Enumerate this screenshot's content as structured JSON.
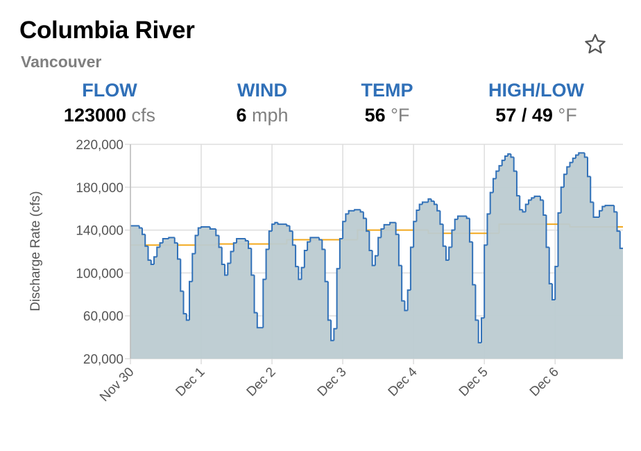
{
  "header": {
    "title": "Columbia River",
    "subtitle": "Vancouver",
    "favorite_icon": "star-outline-icon"
  },
  "stats": [
    {
      "label": "FLOW",
      "value": "123000",
      "unit": "cfs"
    },
    {
      "label": "WIND",
      "value": "6",
      "unit": "mph"
    },
    {
      "label": "TEMP",
      "value": "56",
      "unit": "°F"
    },
    {
      "label": "HIGH/LOW",
      "value": "57 / 49",
      "unit": "°F"
    }
  ],
  "colors": {
    "accent": "#3070b8",
    "flow_line": "#3070b8",
    "flow_fill": "#bccbd1",
    "secondary_line": "#f2a81d",
    "grid": "#dddddd"
  },
  "chart_data": {
    "type": "area",
    "step": true,
    "ylabel": "Discharge Rate (cfs)",
    "xlabel": "",
    "ylim": [
      20000,
      220000
    ],
    "yticks": [
      "20,000",
      "60,000",
      "100,000",
      "140,000",
      "180,000",
      "220,000"
    ],
    "ytick_values": [
      20000,
      60000,
      100000,
      140000,
      180000,
      220000
    ],
    "xticks": [
      "Nov 30",
      "Dec 1",
      "Dec 2",
      "Dec 3",
      "Dec 4",
      "Dec 5",
      "Dec 6"
    ],
    "xlim": [
      "Nov 30 00:00",
      "Dec 6 23:00"
    ],
    "grid": true,
    "series": [
      {
        "style": "filled step line",
        "points": [
          [
            "Nov 30 00:00",
            144000
          ],
          [
            "Nov 30 03:00",
            142000
          ],
          [
            "Nov 30 04:00",
            136000
          ],
          [
            "Nov 30 05:00",
            125000
          ],
          [
            "Nov 30 06:00",
            112000
          ],
          [
            "Nov 30 07:00",
            108000
          ],
          [
            "Nov 30 08:00",
            115000
          ],
          [
            "Nov 30 09:00",
            124000
          ],
          [
            "Nov 30 10:00",
            128000
          ],
          [
            "Nov 30 11:00",
            132000
          ],
          [
            "Nov 30 13:00",
            133000
          ],
          [
            "Nov 30 15:00",
            128000
          ],
          [
            "Nov 30 16:00",
            113000
          ],
          [
            "Nov 30 17:00",
            83000
          ],
          [
            "Nov 30 18:00",
            62000
          ],
          [
            "Nov 30 19:00",
            56000
          ],
          [
            "Nov 30 20:00",
            92000
          ],
          [
            "Nov 30 21:00",
            118000
          ],
          [
            "Nov 30 22:00",
            135000
          ],
          [
            "Nov 30 23:00",
            142000
          ],
          [
            "Dec 1 00:00",
            143000
          ],
          [
            "Dec 1 03:00",
            141000
          ],
          [
            "Dec 1 05:00",
            135000
          ],
          [
            "Dec 1 06:00",
            124000
          ],
          [
            "Dec 1 07:00",
            108000
          ],
          [
            "Dec 1 08:00",
            98000
          ],
          [
            "Dec 1 09:00",
            109000
          ],
          [
            "Dec 1 10:00",
            120000
          ],
          [
            "Dec 1 11:00",
            128000
          ],
          [
            "Dec 1 12:00",
            132000
          ],
          [
            "Dec 1 15:00",
            130000
          ],
          [
            "Dec 1 16:00",
            123000
          ],
          [
            "Dec 1 17:00",
            98000
          ],
          [
            "Dec 1 18:00",
            63000
          ],
          [
            "Dec 1 19:00",
            49000
          ],
          [
            "Dec 1 21:00",
            94000
          ],
          [
            "Dec 1 22:00",
            122000
          ],
          [
            "Dec 1 23:00",
            139000
          ],
          [
            "Dec 2 00:00",
            145500
          ],
          [
            "Dec 2 01:00",
            147000
          ],
          [
            "Dec 2 02:00",
            145500
          ],
          [
            "Dec 2 05:00",
            144000
          ],
          [
            "Dec 2 06:00",
            139000
          ],
          [
            "Dec 2 07:00",
            126000
          ],
          [
            "Dec 2 08:00",
            106000
          ],
          [
            "Dec 2 09:00",
            94000
          ],
          [
            "Dec 2 10:00",
            105000
          ],
          [
            "Dec 2 11:00",
            121000
          ],
          [
            "Dec 2 12:00",
            129000
          ],
          [
            "Dec 2 13:00",
            133000
          ],
          [
            "Dec 2 16:00",
            131000
          ],
          [
            "Dec 2 17:00",
            122000
          ],
          [
            "Dec 2 18:00",
            92000
          ],
          [
            "Dec 2 19:00",
            56000
          ],
          [
            "Dec 2 20:00",
            37000
          ],
          [
            "Dec 2 21:00",
            48000
          ],
          [
            "Dec 2 22:00",
            104000
          ],
          [
            "Dec 2 23:00",
            132000
          ],
          [
            "Dec 3 00:00",
            148000
          ],
          [
            "Dec 3 01:00",
            155000
          ],
          [
            "Dec 3 02:00",
            158000
          ],
          [
            "Dec 3 04:00",
            159000
          ],
          [
            "Dec 3 06:00",
            157000
          ],
          [
            "Dec 3 07:00",
            151000
          ],
          [
            "Dec 3 08:00",
            139000
          ],
          [
            "Dec 3 09:00",
            121000
          ],
          [
            "Dec 3 10:00",
            107000
          ],
          [
            "Dec 3 11:00",
            116000
          ],
          [
            "Dec 3 12:00",
            133000
          ],
          [
            "Dec 3 13:00",
            141000
          ],
          [
            "Dec 3 14:00",
            145000
          ],
          [
            "Dec 3 16:00",
            147000
          ],
          [
            "Dec 3 18:00",
            136000
          ],
          [
            "Dec 3 19:00",
            107000
          ],
          [
            "Dec 3 20:00",
            74000
          ],
          [
            "Dec 3 21:00",
            65000
          ],
          [
            "Dec 3 22:00",
            84000
          ],
          [
            "Dec 3 23:00",
            124000
          ],
          [
            "Dec 4 00:00",
            148000
          ],
          [
            "Dec 4 01:00",
            158500
          ],
          [
            "Dec 4 02:00",
            164000
          ],
          [
            "Dec 4 03:00",
            166000
          ],
          [
            "Dec 4 05:00",
            169000
          ],
          [
            "Dec 4 06:00",
            167000
          ],
          [
            "Dec 4 07:00",
            164000
          ],
          [
            "Dec 4 08:00",
            158000
          ],
          [
            "Dec 4 09:00",
            145500
          ],
          [
            "Dec 4 10:00",
            125000
          ],
          [
            "Dec 4 11:00",
            112000
          ],
          [
            "Dec 4 12:00",
            124000
          ],
          [
            "Dec 4 13:00",
            140000
          ],
          [
            "Dec 4 14:00",
            150000
          ],
          [
            "Dec 4 15:00",
            153000
          ],
          [
            "Dec 4 18:00",
            151000
          ],
          [
            "Dec 4 19:00",
            129000
          ],
          [
            "Dec 4 20:00",
            89000
          ],
          [
            "Dec 4 21:00",
            56000
          ],
          [
            "Dec 4 22:00",
            35000
          ],
          [
            "Dec 4 23:00",
            58000
          ],
          [
            "Dec 5 00:00",
            126000
          ],
          [
            "Dec 5 01:00",
            155000
          ],
          [
            "Dec 5 02:00",
            175000
          ],
          [
            "Dec 5 03:00",
            188000
          ],
          [
            "Dec 5 04:00",
            195000
          ],
          [
            "Dec 5 05:00",
            200000
          ],
          [
            "Dec 5 06:00",
            205000
          ],
          [
            "Dec 5 07:00",
            209000
          ],
          [
            "Dec 5 08:00",
            211000
          ],
          [
            "Dec 5 09:00",
            208000
          ],
          [
            "Dec 5 10:00",
            195000
          ],
          [
            "Dec 5 11:00",
            172000
          ],
          [
            "Dec 5 12:00",
            159000
          ],
          [
            "Dec 5 13:00",
            157000
          ],
          [
            "Dec 5 14:00",
            164000
          ],
          [
            "Dec 5 15:00",
            168000
          ],
          [
            "Dec 5 16:00",
            170000
          ],
          [
            "Dec 5 17:00",
            171500
          ],
          [
            "Dec 5 19:00",
            168000
          ],
          [
            "Dec 5 20:00",
            154000
          ],
          [
            "Dec 5 21:00",
            124000
          ],
          [
            "Dec 5 22:00",
            90000
          ],
          [
            "Dec 5 23:00",
            75000
          ],
          [
            "Dec 6 00:00",
            106000
          ],
          [
            "Dec 6 01:00",
            156000
          ],
          [
            "Dec 6 02:00",
            180000
          ],
          [
            "Dec 6 03:00",
            192000
          ],
          [
            "Dec 6 04:00",
            199000
          ],
          [
            "Dec 6 05:00",
            203000
          ],
          [
            "Dec 6 06:00",
            207000
          ],
          [
            "Dec 6 07:00",
            210000
          ],
          [
            "Dec 6 08:00",
            212000
          ],
          [
            "Dec 6 10:00",
            208000
          ],
          [
            "Dec 6 11:00",
            190000
          ],
          [
            "Dec 6 12:00",
            166000
          ],
          [
            "Dec 6 13:00",
            152000
          ],
          [
            "Dec 6 15:00",
            158000
          ],
          [
            "Dec 6 16:00",
            162000
          ],
          [
            "Dec 6 17:00",
            163000
          ],
          [
            "Dec 6 20:00",
            157000
          ],
          [
            "Dec 6 21:00",
            139000
          ],
          [
            "Dec 6 22:00",
            123000
          ]
        ]
      },
      {
        "style": "step line",
        "points": [
          [
            "Nov 30 00:00",
            126000
          ],
          [
            "Dec 1 05:00",
            127000
          ],
          [
            "Dec 2 05:00",
            131000
          ],
          [
            "Dec 3 05:00",
            140000
          ],
          [
            "Dec 4 05:00",
            137000
          ],
          [
            "Dec 5 05:00",
            145500
          ],
          [
            "Dec 6 05:00",
            143000
          ]
        ]
      }
    ]
  }
}
